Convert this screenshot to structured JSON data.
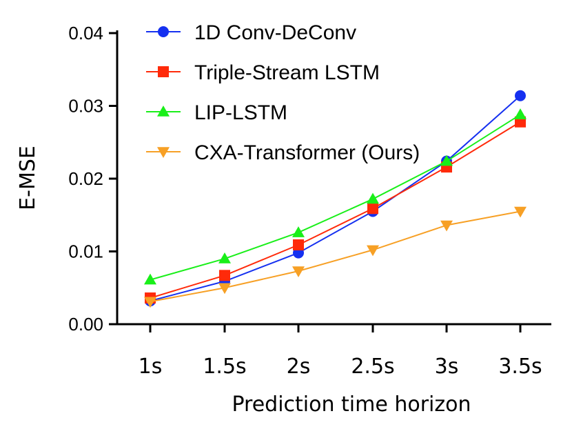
{
  "chart_data": {
    "type": "line",
    "title": "",
    "xlabel": "Prediction time horizon",
    "ylabel": "E-MSE",
    "categories": [
      "1s",
      "1.5s",
      "2s",
      "2.5s",
      "3s",
      "3.5s"
    ],
    "ylim": [
      0,
      0.04
    ],
    "yticks": [
      "0.00",
      "0.01",
      "0.02",
      "0.03",
      "0.04"
    ],
    "grid": false,
    "legend_position": "top-left",
    "series": [
      {
        "name": "1D Conv-DeConv",
        "color": "#1530f0",
        "marker": "circle",
        "values": [
          0.0032,
          0.0059,
          0.0098,
          0.0155,
          0.0224,
          0.0314
        ]
      },
      {
        "name": "Triple-Stream LSTM",
        "color": "#ff2a0a",
        "marker": "square",
        "values": [
          0.0036,
          0.0067,
          0.0109,
          0.0159,
          0.0216,
          0.0278
        ]
      },
      {
        "name": "LIP-LSTM",
        "color": "#19ef19",
        "marker": "triangle-up",
        "values": [
          0.0061,
          0.009,
          0.0126,
          0.0172,
          0.0224,
          0.0288
        ]
      },
      {
        "name": "CXA-Transformer (Ours)",
        "color": "#f7a025",
        "marker": "triangle-down",
        "values": [
          0.0031,
          0.005,
          0.0073,
          0.0102,
          0.0136,
          0.0155
        ]
      }
    ]
  }
}
